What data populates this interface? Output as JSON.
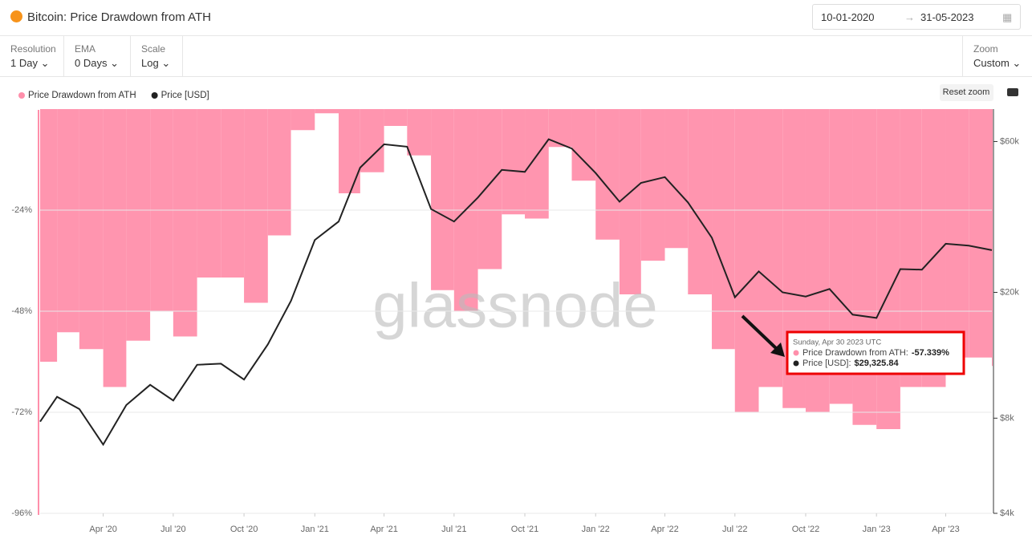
{
  "header": {
    "title": "Bitcoin: Price Drawdown from ATH",
    "date_from": "10-01-2020",
    "date_to": "31-05-2023"
  },
  "controls": [
    {
      "label": "Resolution",
      "value": "1 Day"
    },
    {
      "label": "EMA",
      "value": "0 Days"
    },
    {
      "label": "Scale",
      "value": "Log"
    }
  ],
  "zoom": {
    "label": "Zoom",
    "value": "Custom"
  },
  "reset_zoom": "Reset zoom",
  "watermark": "glassnode",
  "chart_data": {
    "type": "combo",
    "x": [
      "2020-01-10",
      "2020-02-01",
      "2020-03-01",
      "2020-04-01",
      "2020-05-01",
      "2020-06-01",
      "2020-07-01",
      "2020-08-01",
      "2020-09-01",
      "2020-10-01",
      "2020-11-01",
      "2020-12-01",
      "2021-01-01",
      "2021-02-01",
      "2021-03-01",
      "2021-04-01",
      "2021-05-01",
      "2021-06-01",
      "2021-07-01",
      "2021-08-01",
      "2021-09-01",
      "2021-10-01",
      "2021-11-01",
      "2021-12-01",
      "2022-01-01",
      "2022-02-01",
      "2022-03-01",
      "2022-04-01",
      "2022-05-01",
      "2022-06-01",
      "2022-07-01",
      "2022-08-01",
      "2022-09-01",
      "2022-10-01",
      "2022-11-01",
      "2022-12-01",
      "2023-01-01",
      "2023-02-01",
      "2023-03-01",
      "2023-04-01",
      "2023-05-01",
      "2023-05-31"
    ],
    "series": [
      {
        "name": "Price Drawdown from ATH",
        "type": "bar",
        "axis": "y",
        "color": "#ff8fab",
        "values": [
          -60,
          -53,
          -57,
          -66,
          -55,
          -48,
          -54,
          -40,
          -40,
          -46,
          -30,
          -5,
          -1,
          -20,
          -15,
          -4,
          -11,
          -43,
          -48,
          -38,
          -25,
          -26,
          -9,
          -17,
          -31,
          -44,
          -36,
          -33,
          -44,
          -57,
          -72,
          -66,
          -71,
          -72,
          -70,
          -75,
          -76,
          -66,
          -66,
          -59,
          -59,
          -61
        ]
      },
      {
        "name": "Price [USD]",
        "type": "line",
        "axis": "y2",
        "color": "#222222",
        "values": [
          7800,
          9350,
          8550,
          6600,
          8800,
          10200,
          9100,
          11800,
          11900,
          10600,
          13700,
          18800,
          29300,
          33500,
          49600,
          58800,
          57800,
          36700,
          33500,
          39900,
          48800,
          48100,
          61000,
          57000,
          47700,
          38700,
          44400,
          46300,
          38500,
          29800,
          19300,
          23300,
          20000,
          19400,
          20500,
          17000,
          16600,
          23700,
          23600,
          28500,
          28100,
          27200
        ]
      }
    ],
    "xlim": [
      "2020-01-10",
      "2023-05-31"
    ],
    "xticks": [
      {
        "value": "2020-04-01",
        "label": "Apr '20"
      },
      {
        "value": "2020-07-01",
        "label": "Jul '20"
      },
      {
        "value": "2020-10-01",
        "label": "Oct '20"
      },
      {
        "value": "2021-01-01",
        "label": "Jan '21"
      },
      {
        "value": "2021-04-01",
        "label": "Apr '21"
      },
      {
        "value": "2021-07-01",
        "label": "Jul '21"
      },
      {
        "value": "2021-10-01",
        "label": "Oct '21"
      },
      {
        "value": "2022-01-01",
        "label": "Jan '22"
      },
      {
        "value": "2022-04-01",
        "label": "Apr '22"
      },
      {
        "value": "2022-07-01",
        "label": "Jul '22"
      },
      {
        "value": "2022-10-01",
        "label": "Oct '22"
      },
      {
        "value": "2023-01-01",
        "label": "Jan '23"
      },
      {
        "value": "2023-04-01",
        "label": "Apr '23"
      }
    ],
    "ylim": [
      -96,
      0
    ],
    "yticks": [
      {
        "value": -24,
        "label": "-24%"
      },
      {
        "value": -48,
        "label": "-48%"
      },
      {
        "value": -72,
        "label": "-72%"
      },
      {
        "value": -96,
        "label": "-96%"
      }
    ],
    "y2lim": [
      4000,
      76000
    ],
    "y2log": true,
    "y2ticks": [
      {
        "value": 4000,
        "label": "$4k"
      },
      {
        "value": 8000,
        "label": "$8k"
      },
      {
        "value": 20000,
        "label": "$20k"
      },
      {
        "value": 60000,
        "label": "$60k"
      }
    ],
    "grid": true,
    "tooltip": {
      "date": "Sunday, Apr 30 2023 UTC",
      "items": [
        {
          "label": "Price Drawdown from ATH:",
          "value": "-57.339%"
        },
        {
          "label": "Price [USD]:",
          "value": "$29,325.84"
        }
      ]
    }
  }
}
